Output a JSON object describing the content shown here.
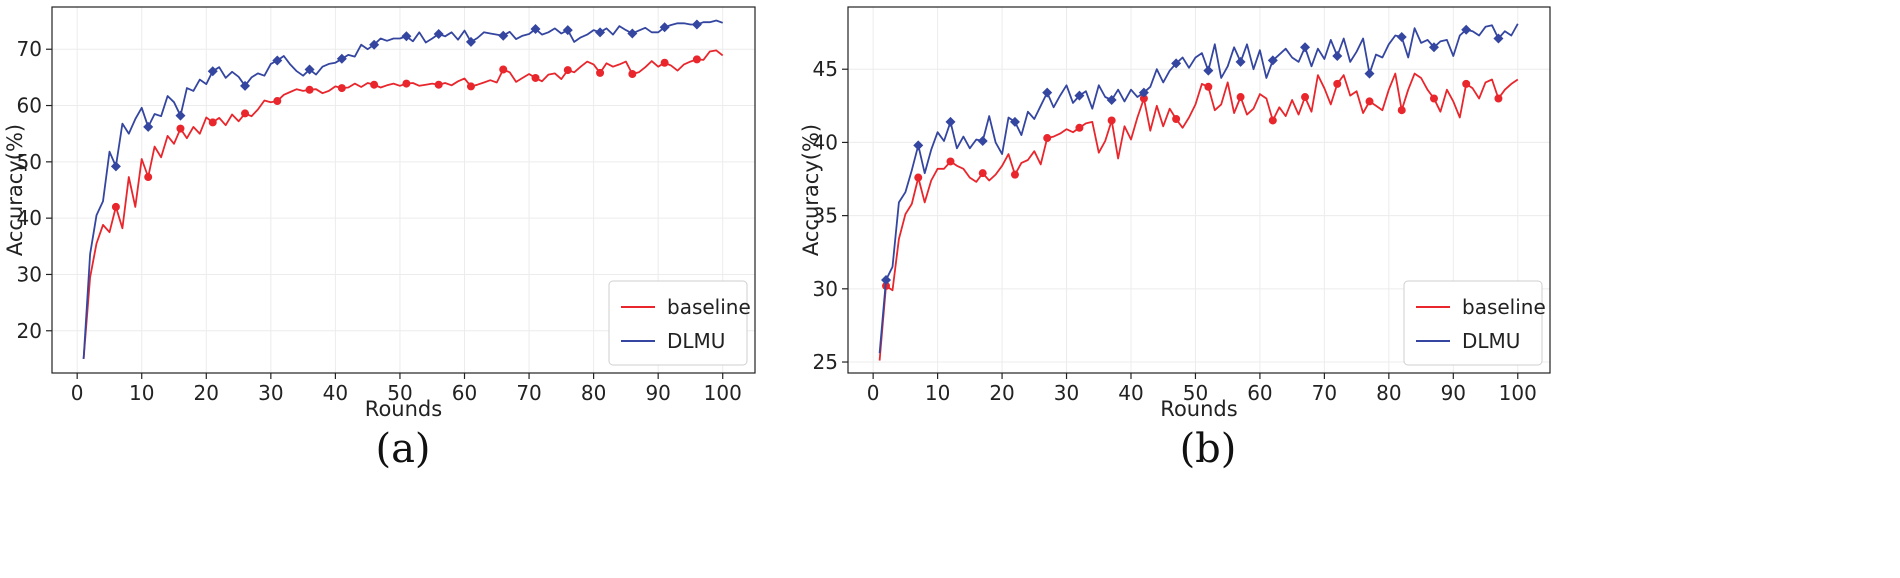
{
  "chart_data": [
    {
      "type": "line",
      "caption": "(a)",
      "xlabel": "Rounds",
      "ylabel": "Accuracy(%)",
      "xlim": [
        -3.9,
        105
      ],
      "ylim": [
        12.5,
        77.5
      ],
      "xticks": [
        0,
        10,
        20,
        30,
        40,
        50,
        60,
        70,
        80,
        90,
        100
      ],
      "yticks": [
        20,
        30,
        40,
        50,
        60,
        70
      ],
      "grid": true,
      "legend_position": "bottom-right",
      "x": [
        1,
        2,
        3,
        4,
        5,
        6,
        7,
        8,
        9,
        10,
        11,
        12,
        13,
        14,
        15,
        16,
        17,
        18,
        19,
        20,
        21,
        22,
        23,
        24,
        25,
        26,
        27,
        28,
        29,
        30,
        31,
        32,
        33,
        34,
        35,
        36,
        37,
        38,
        39,
        40,
        41,
        42,
        43,
        44,
        45,
        46,
        47,
        48,
        49,
        50,
        51,
        52,
        53,
        54,
        55,
        56,
        57,
        58,
        59,
        60,
        61,
        62,
        63,
        64,
        65,
        66,
        67,
        68,
        69,
        70,
        71,
        72,
        73,
        74,
        75,
        76,
        77,
        78,
        79,
        80,
        81,
        82,
        83,
        84,
        85,
        86,
        87,
        88,
        89,
        90,
        91,
        92,
        93,
        94,
        95,
        96,
        97,
        98,
        99,
        100
      ],
      "marker_every_from": 1,
      "marker_step": 5,
      "series": [
        {
          "name": "baseline",
          "color": "#e8262c",
          "marker": "circle",
          "values": [
            15.0,
            29.5,
            35.5,
            38.8,
            37.5,
            42.0,
            38.2,
            47.3,
            42.0,
            50.5,
            47.3,
            52.7,
            50.8,
            54.6,
            53.2,
            55.9,
            54.2,
            56.2,
            55.0,
            57.9,
            57.0,
            57.8,
            56.5,
            58.4,
            57.2,
            58.6,
            58.1,
            59.3,
            60.9,
            60.6,
            60.8,
            61.9,
            62.4,
            62.9,
            62.6,
            62.8,
            62.9,
            62.2,
            62.6,
            63.4,
            63.1,
            63.2,
            63.9,
            63.3,
            64.0,
            63.7,
            63.2,
            63.6,
            63.9,
            63.5,
            63.9,
            64.0,
            63.5,
            63.7,
            63.9,
            63.7,
            64.0,
            63.6,
            64.3,
            64.8,
            63.4,
            63.7,
            64.1,
            64.5,
            64.1,
            66.4,
            65.9,
            64.2,
            64.9,
            65.6,
            64.9,
            64.3,
            65.5,
            65.7,
            64.7,
            66.3,
            65.9,
            66.9,
            67.8,
            67.3,
            65.8,
            67.5,
            66.9,
            67.3,
            67.8,
            65.6,
            65.9,
            66.8,
            67.9,
            66.9,
            67.6,
            67.1,
            66.2,
            67.3,
            67.8,
            68.2,
            68.1,
            69.6,
            69.8,
            68.9
          ]
        },
        {
          "name": "DLMU",
          "color": "#3446a0",
          "marker": "diamond",
          "values": [
            15.0,
            33.6,
            40.5,
            43.0,
            51.8,
            49.2,
            56.8,
            55.0,
            57.6,
            59.6,
            56.2,
            58.5,
            58.1,
            61.7,
            60.6,
            58.2,
            63.1,
            62.6,
            64.6,
            63.8,
            66.1,
            66.8,
            64.9,
            66.0,
            65.1,
            63.5,
            65.0,
            65.7,
            65.3,
            67.4,
            68.0,
            68.8,
            67.3,
            66.1,
            65.3,
            66.4,
            65.5,
            66.9,
            67.4,
            67.6,
            68.3,
            69.0,
            68.7,
            70.8,
            70.0,
            70.8,
            71.9,
            71.5,
            71.9,
            71.9,
            72.3,
            71.4,
            73.0,
            71.2,
            71.9,
            72.7,
            72.3,
            73.0,
            71.7,
            73.3,
            71.3,
            72.0,
            73.0,
            72.8,
            72.6,
            72.4,
            73.1,
            71.8,
            72.4,
            72.7,
            73.6,
            72.6,
            73.0,
            73.7,
            72.8,
            73.4,
            71.3,
            72.1,
            72.6,
            73.4,
            73.0,
            73.7,
            72.6,
            74.1,
            73.4,
            72.8,
            73.3,
            73.8,
            73.0,
            73.0,
            73.9,
            74.3,
            74.6,
            74.6,
            74.4,
            74.4,
            74.8,
            74.8,
            75.1,
            74.7
          ]
        }
      ]
    },
    {
      "type": "line",
      "caption": "(b)",
      "xlabel": "Rounds",
      "ylabel": "Accuracy(%)",
      "xlim": [
        -3.9,
        105
      ],
      "ylim": [
        24.25,
        49.25
      ],
      "xticks": [
        0,
        10,
        20,
        30,
        40,
        50,
        60,
        70,
        80,
        90,
        100
      ],
      "yticks": [
        25,
        30,
        35,
        40,
        45
      ],
      "grid": true,
      "legend_position": "bottom-right",
      "x": [
        1,
        2,
        3,
        4,
        5,
        6,
        7,
        8,
        9,
        10,
        11,
        12,
        13,
        14,
        15,
        16,
        17,
        18,
        19,
        20,
        21,
        22,
        23,
        24,
        25,
        26,
        27,
        28,
        29,
        30,
        31,
        32,
        33,
        34,
        35,
        36,
        37,
        38,
        39,
        40,
        41,
        42,
        43,
        44,
        45,
        46,
        47,
        48,
        49,
        50,
        51,
        52,
        53,
        54,
        55,
        56,
        57,
        58,
        59,
        60,
        61,
        62,
        63,
        64,
        65,
        66,
        67,
        68,
        69,
        70,
        71,
        72,
        73,
        74,
        75,
        76,
        77,
        78,
        79,
        80,
        81,
        82,
        83,
        84,
        85,
        86,
        87,
        88,
        89,
        90,
        91,
        92,
        93,
        94,
        95,
        96,
        97,
        98,
        99,
        100
      ],
      "marker_every_from": 2,
      "marker_step": 5,
      "series": [
        {
          "name": "baseline",
          "color": "#e8262c",
          "marker": "circle",
          "values": [
            25.1,
            30.2,
            29.9,
            33.4,
            35.1,
            35.8,
            37.6,
            35.9,
            37.4,
            38.2,
            38.2,
            38.7,
            38.4,
            38.2,
            37.6,
            37.3,
            37.9,
            37.4,
            37.8,
            38.4,
            39.2,
            37.8,
            38.6,
            38.8,
            39.4,
            38.5,
            40.3,
            40.4,
            40.6,
            40.9,
            40.7,
            41.0,
            41.3,
            41.4,
            39.3,
            40.1,
            41.5,
            38.9,
            41.1,
            40.2,
            41.7,
            43.0,
            40.8,
            42.5,
            41.1,
            42.3,
            41.6,
            41.0,
            41.7,
            42.6,
            44.0,
            43.8,
            42.2,
            42.6,
            44.1,
            42.0,
            43.1,
            41.9,
            42.3,
            43.3,
            43.0,
            41.5,
            42.4,
            41.8,
            42.9,
            41.9,
            43.1,
            42.1,
            44.6,
            43.7,
            42.6,
            44.0,
            44.6,
            43.2,
            43.5,
            42.0,
            42.8,
            42.5,
            42.2,
            43.6,
            44.7,
            42.2,
            43.6,
            44.7,
            44.4,
            43.6,
            43.0,
            42.1,
            43.6,
            42.8,
            41.7,
            44.0,
            43.7,
            43.0,
            44.1,
            44.3,
            43.0,
            43.6,
            44.0,
            44.3
          ]
        },
        {
          "name": "DLMU",
          "color": "#3446a0",
          "marker": "diamond",
          "values": [
            25.6,
            30.6,
            31.5,
            35.9,
            36.6,
            38.1,
            39.8,
            37.9,
            39.5,
            40.7,
            40.1,
            41.4,
            39.6,
            40.4,
            39.6,
            40.2,
            40.1,
            41.8,
            40.0,
            39.2,
            41.7,
            41.4,
            40.5,
            42.1,
            41.6,
            42.5,
            43.4,
            42.4,
            43.2,
            43.9,
            42.7,
            43.2,
            43.5,
            42.3,
            43.9,
            43.1,
            42.9,
            43.6,
            42.8,
            43.6,
            43.1,
            43.4,
            43.8,
            45.0,
            44.1,
            44.9,
            45.4,
            45.8,
            45.1,
            45.8,
            46.1,
            44.9,
            46.7,
            44.4,
            45.2,
            46.5,
            45.5,
            46.7,
            45.0,
            46.3,
            44.4,
            45.6,
            46.0,
            46.4,
            45.8,
            45.5,
            46.5,
            45.2,
            46.4,
            45.7,
            47.0,
            45.9,
            47.1,
            45.5,
            46.2,
            47.1,
            44.7,
            46.0,
            45.8,
            46.7,
            47.3,
            47.2,
            45.8,
            47.8,
            46.8,
            47.0,
            46.5,
            46.9,
            47.0,
            45.9,
            47.3,
            47.7,
            47.6,
            47.3,
            47.9,
            48.0,
            47.1,
            47.6,
            47.3,
            48.1
          ]
        }
      ]
    }
  ]
}
